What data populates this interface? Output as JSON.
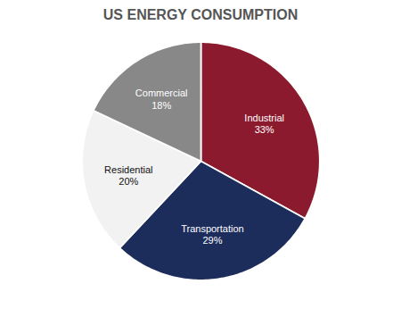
{
  "chart_data": {
    "type": "pie",
    "title": "US ENERGY CONSUMPTION",
    "categories": [
      "Industrial",
      "Transportation",
      "Residential",
      "Commercial"
    ],
    "values": [
      33,
      29,
      20,
      18
    ],
    "value_labels": [
      "33%",
      "29%",
      "20%",
      "18%"
    ],
    "colors": [
      "#8B1A2E",
      "#1C2C5B",
      "#F2F2F2",
      "#888888"
    ],
    "data_labels": true,
    "tick_labels": false
  }
}
